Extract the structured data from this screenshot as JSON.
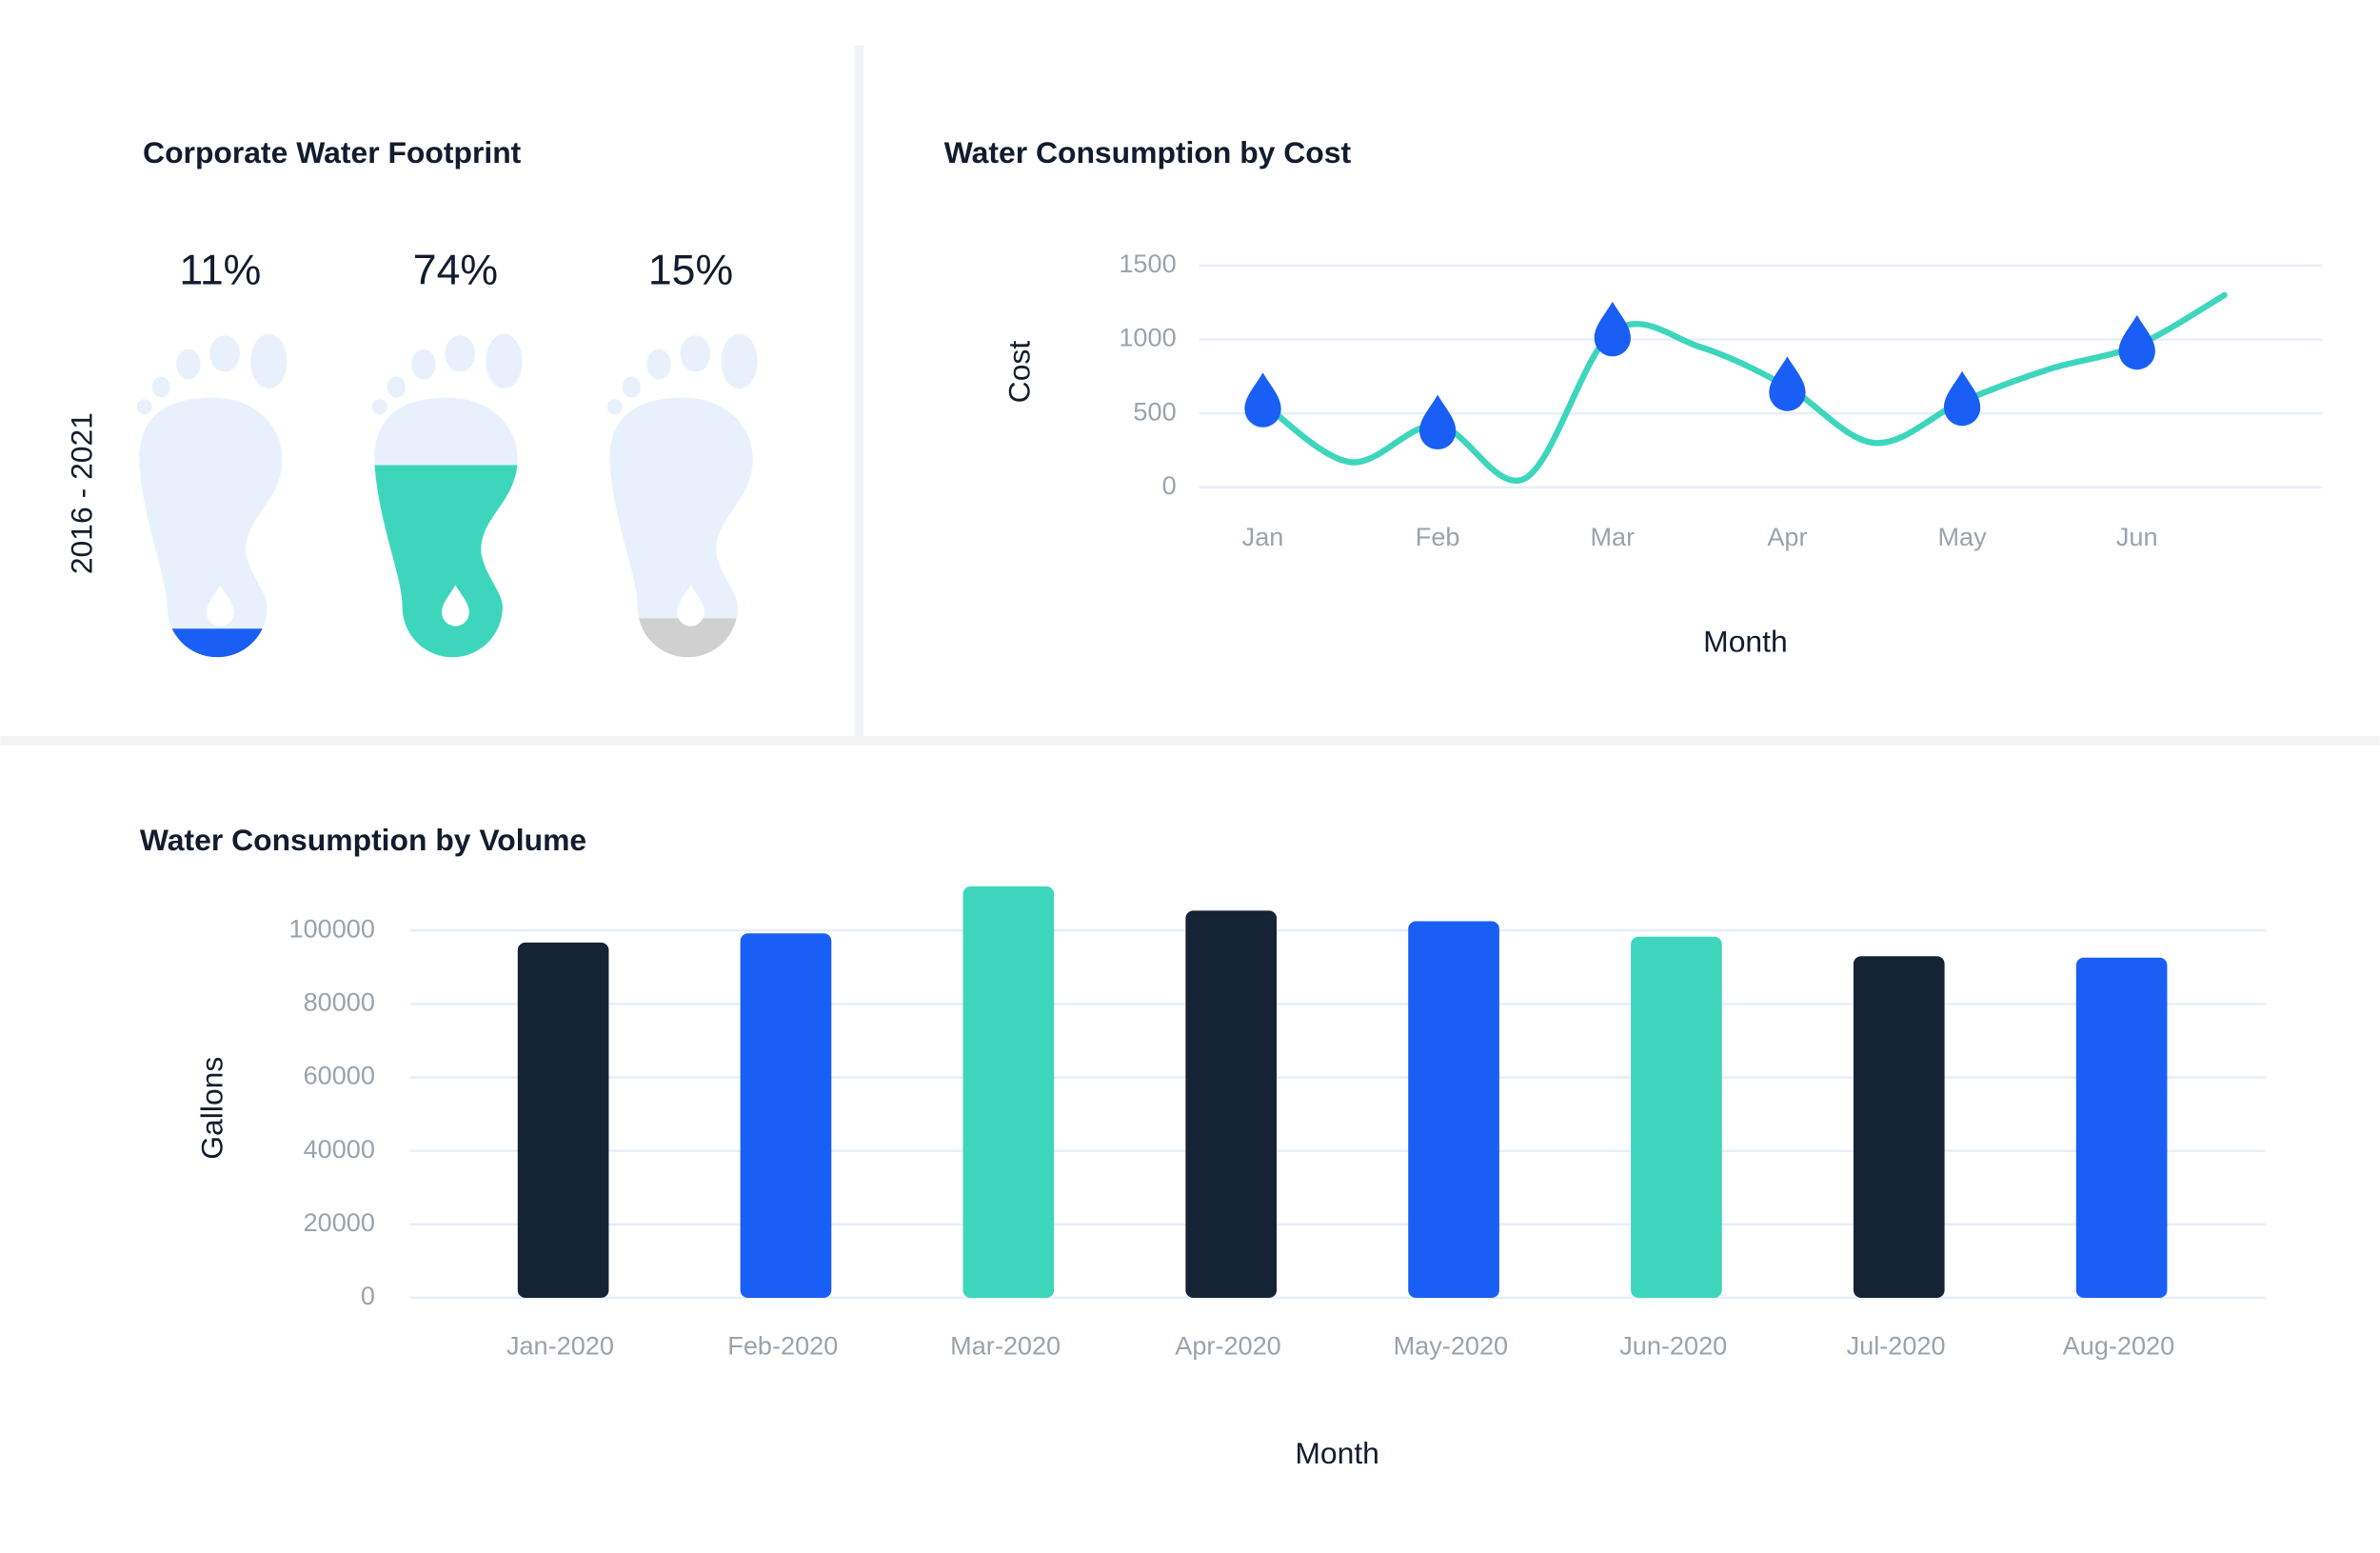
{
  "chart_data": [
    {
      "type": "footprint",
      "title": "Corporate Water Footprint",
      "ylabel": "2016 - 2021",
      "values": [
        11,
        74,
        15
      ],
      "value_labels": [
        "11%",
        "74%",
        "15%"
      ],
      "colors": [
        "#1a5ff5",
        "#3dd6bd",
        "#d0d0d0"
      ]
    },
    {
      "type": "line",
      "title": "Water Consumption by Cost",
      "xlabel": "Month",
      "ylabel": "Cost",
      "categories": [
        "Jan",
        null,
        "Feb",
        null,
        "Mar",
        null,
        "Apr",
        null,
        "May",
        null,
        "Jun",
        null
      ],
      "values": [
        570,
        170,
        420,
        60,
        1050,
        950,
        680,
        300,
        580,
        800,
        960,
        1300
      ],
      "color": "#3dd6bd",
      "marker_color": "#1a5ff5",
      "ylim": [
        0,
        1500
      ],
      "yticks": [
        0,
        500,
        1000,
        1500
      ],
      "grid": true
    },
    {
      "type": "bar",
      "title": "Water Consumption by Volume",
      "xlabel": "Month",
      "ylabel": "Gallons",
      "categories": [
        "Jan-2020",
        "Feb-2020",
        "Mar-2020",
        "Apr-2020",
        "May-2020",
        "Jun-2020",
        "Jul-2020",
        "Aug-2020"
      ],
      "values": [
        96700,
        99200,
        112000,
        105400,
        102500,
        98300,
        93000,
        92600
      ],
      "colors": [
        "#152336",
        "#1a5ff5",
        "#3dd6bd",
        "#152336",
        "#1a5ff5",
        "#3dd6bd",
        "#152336",
        "#1a5ff5"
      ],
      "ylim": [
        0,
        115000
      ],
      "yticks": [
        0,
        20000,
        40000,
        60000,
        80000,
        100000
      ],
      "grid": true
    }
  ]
}
